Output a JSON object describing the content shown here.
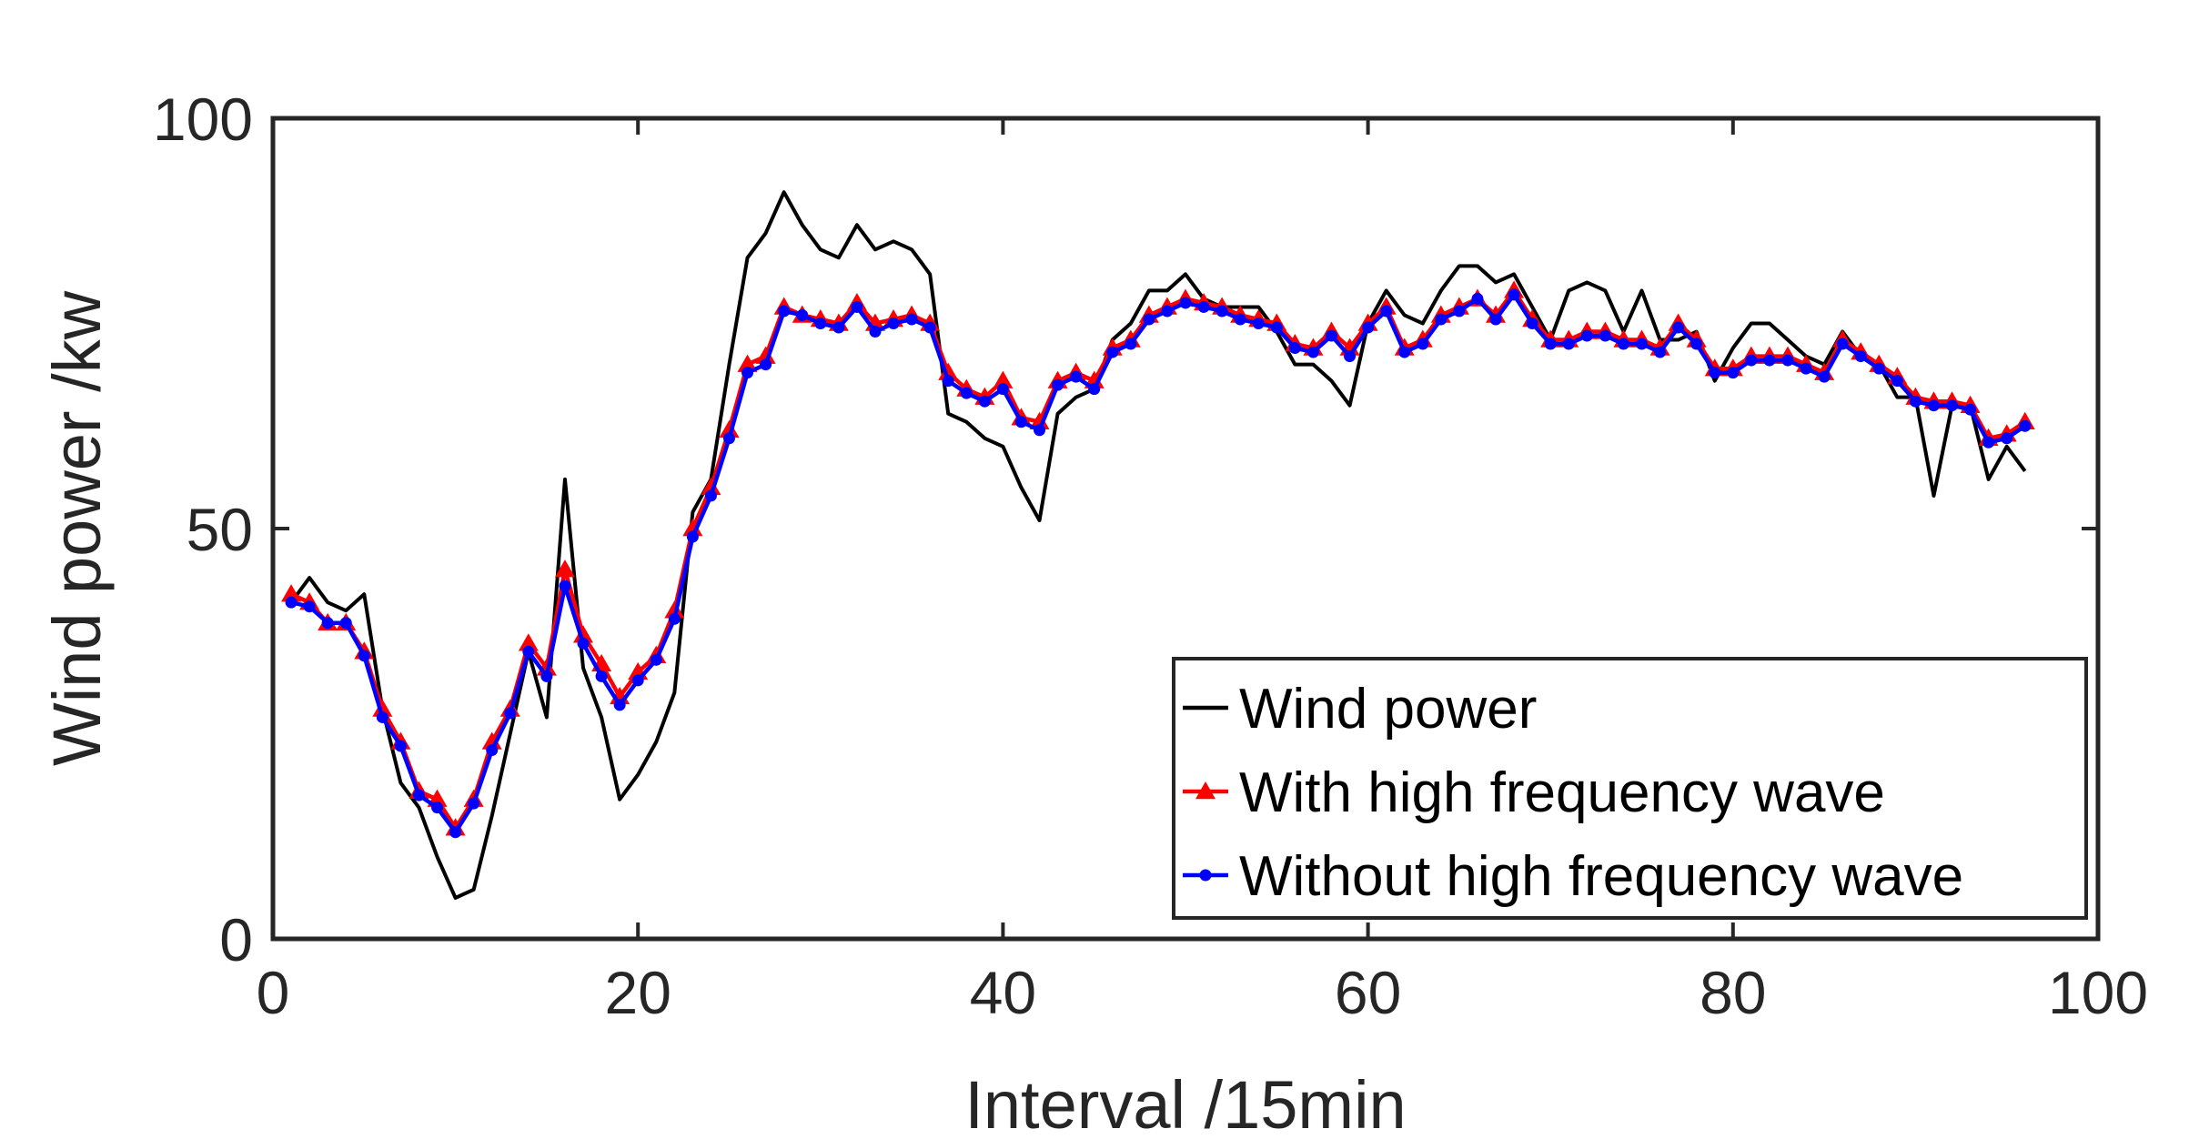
{
  "chart_data": {
    "type": "line",
    "title": "",
    "xlabel": "Interval /15min",
    "ylabel": "Wind power /kw",
    "xlim": [
      0,
      100
    ],
    "ylim": [
      0,
      100
    ],
    "xticks": [
      "0",
      "20",
      "40",
      "60",
      "80",
      "100"
    ],
    "yticks": [
      "0",
      "50",
      "100"
    ],
    "grid": false,
    "legend_position": "bottom-right",
    "x": [
      1,
      2,
      3,
      4,
      5,
      6,
      7,
      8,
      9,
      10,
      11,
      12,
      13,
      14,
      15,
      16,
      17,
      18,
      19,
      20,
      21,
      22,
      23,
      24,
      25,
      26,
      27,
      28,
      29,
      30,
      31,
      32,
      33,
      34,
      35,
      36,
      37,
      38,
      39,
      40,
      41,
      42,
      43,
      44,
      45,
      46,
      47,
      48,
      49,
      50,
      51,
      52,
      53,
      54,
      55,
      56,
      57,
      58,
      59,
      60,
      61,
      62,
      63,
      64,
      65,
      66,
      67,
      68,
      69,
      70,
      71,
      72,
      73,
      74,
      75,
      76,
      77,
      78,
      79,
      80,
      81,
      82,
      83,
      84,
      85,
      86,
      87,
      88,
      89,
      90,
      91,
      92,
      93,
      94,
      95,
      96
    ],
    "series": [
      {
        "name": "Wind power",
        "color": "#000000",
        "marker": "none",
        "values": [
          41,
          44,
          41,
          40,
          42,
          28,
          19,
          16,
          10,
          5,
          6,
          15,
          25,
          35,
          27,
          56,
          33,
          27,
          17,
          20,
          24,
          30,
          52,
          56,
          70,
          83,
          86,
          91,
          87,
          84,
          83,
          87,
          84,
          85,
          84,
          81,
          64,
          63,
          61,
          60,
          55,
          51,
          64,
          66,
          67,
          73,
          75,
          79,
          79,
          81,
          78,
          77,
          77,
          77,
          74,
          70,
          70,
          68,
          65,
          75,
          79,
          76,
          75,
          79,
          82,
          82,
          80,
          81,
          77,
          73,
          79,
          80,
          79,
          74,
          79,
          73,
          73,
          74,
          68,
          72,
          75,
          75,
          73,
          71,
          70,
          74,
          71,
          70,
          66,
          66,
          54,
          65,
          65,
          56,
          60,
          57
        ]
      },
      {
        "name": "With high frequency wave",
        "color": "#ff0000",
        "marker": "triangle",
        "values": [
          42,
          41,
          38.5,
          38.5,
          35,
          28,
          24,
          18,
          17,
          13.5,
          17,
          24,
          28,
          36,
          33,
          45,
          37,
          33.5,
          29.5,
          32.5,
          34.5,
          40,
          50,
          55,
          62,
          70,
          71,
          77,
          76,
          75.5,
          75,
          77.5,
          75,
          75.5,
          76,
          75,
          69,
          67,
          66,
          68,
          63.5,
          63,
          68,
          69,
          68,
          72,
          73,
          76,
          77,
          78,
          77.5,
          77,
          76,
          75.5,
          75,
          72.5,
          72,
          74,
          72,
          75,
          77,
          72,
          73,
          76,
          77,
          78,
          76,
          79,
          75.5,
          73,
          73,
          74,
          74,
          73,
          73,
          72,
          75,
          73,
          69.5,
          69.5,
          71,
          71,
          71,
          70,
          69,
          73,
          71.5,
          70,
          68.5,
          66,
          65.5,
          65.5,
          65,
          61,
          61.5,
          63
        ]
      },
      {
        "name": "Without high frequency wave",
        "color": "#0000ff",
        "marker": "circle",
        "values": [
          41,
          40.5,
          38.5,
          38.5,
          34.5,
          27,
          23.5,
          17.5,
          16,
          13,
          16.5,
          23,
          27.5,
          35,
          32,
          43,
          36,
          32,
          28.5,
          31.5,
          34,
          39,
          49,
          54,
          61,
          69,
          70,
          76.5,
          76,
          75,
          74.5,
          77,
          74,
          75,
          75.5,
          74.5,
          68,
          66.5,
          65.5,
          67,
          63,
          62,
          67.5,
          68.5,
          67,
          71.5,
          72.5,
          75.5,
          76.5,
          77.5,
          77,
          76.5,
          75.5,
          75,
          74.5,
          72,
          71.5,
          73.5,
          71,
          74.5,
          76.5,
          71.5,
          72.5,
          75.5,
          76.5,
          78,
          75.5,
          78.5,
          75,
          72.5,
          72.5,
          73.5,
          73.5,
          72.5,
          72.5,
          71.5,
          74.5,
          72.5,
          69,
          69,
          70.5,
          70.5,
          70.5,
          69.5,
          68.5,
          72.5,
          71,
          69.5,
          68,
          65.5,
          65,
          65,
          64.5,
          60.5,
          61,
          62.5
        ]
      }
    ]
  }
}
